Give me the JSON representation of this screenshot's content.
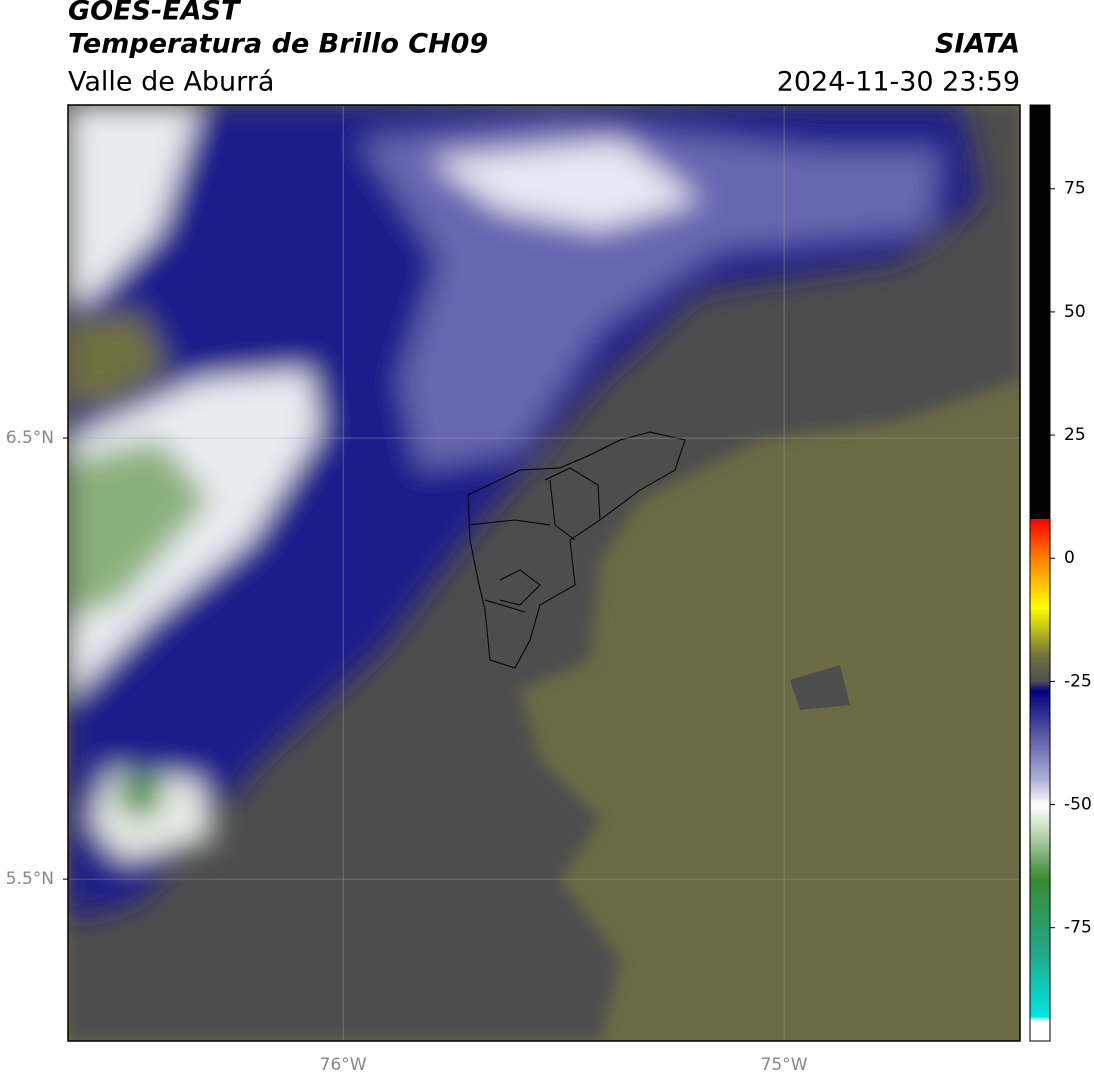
{
  "header": {
    "title": "GOES-EAST",
    "subtitle": "Temperatura de Brillo CH09",
    "region": "Valle de Aburrá",
    "source": "SIATA",
    "timestamp": "2024-11-30 23:59"
  },
  "map": {
    "lonlim": [
      -76.624,
      -74.465
    ],
    "latlim": [
      5.133,
      7.255
    ],
    "lonticks": [
      {
        "value": -76,
        "label": "76°W"
      },
      {
        "value": -75,
        "label": "75°W"
      }
    ],
    "latticks": [
      {
        "value": 6.5,
        "label": "6.5°N"
      },
      {
        "value": 5.5,
        "label": "5.5°N"
      }
    ],
    "grid": true
  },
  "colorbar": {
    "lim": [
      -98,
      92
    ],
    "ticks": [
      75,
      50,
      25,
      0,
      -25,
      -50,
      -75
    ],
    "colormap": [
      {
        "value": -98,
        "color": "#ffffff"
      },
      {
        "value": -94,
        "color": "#ffffff"
      },
      {
        "value": -93,
        "color": "#00e5e0"
      },
      {
        "value": -80,
        "color": "#22a888"
      },
      {
        "value": -65,
        "color": "#3a8a30"
      },
      {
        "value": -55,
        "color": "#c8dcc0"
      },
      {
        "value": -50,
        "color": "#ffffff"
      },
      {
        "value": -45,
        "color": "#b0b0d8"
      },
      {
        "value": -35,
        "color": "#5050a0"
      },
      {
        "value": -27,
        "color": "#000080"
      },
      {
        "value": -25,
        "color": "#505050"
      },
      {
        "value": -20,
        "color": "#707040"
      },
      {
        "value": -10,
        "color": "#ffff00"
      },
      {
        "value": 0,
        "color": "#ff8000"
      },
      {
        "value": 8,
        "color": "#ff0000"
      },
      {
        "value": 8.01,
        "color": "#000000"
      },
      {
        "value": 92,
        "color": "#000000"
      }
    ]
  }
}
